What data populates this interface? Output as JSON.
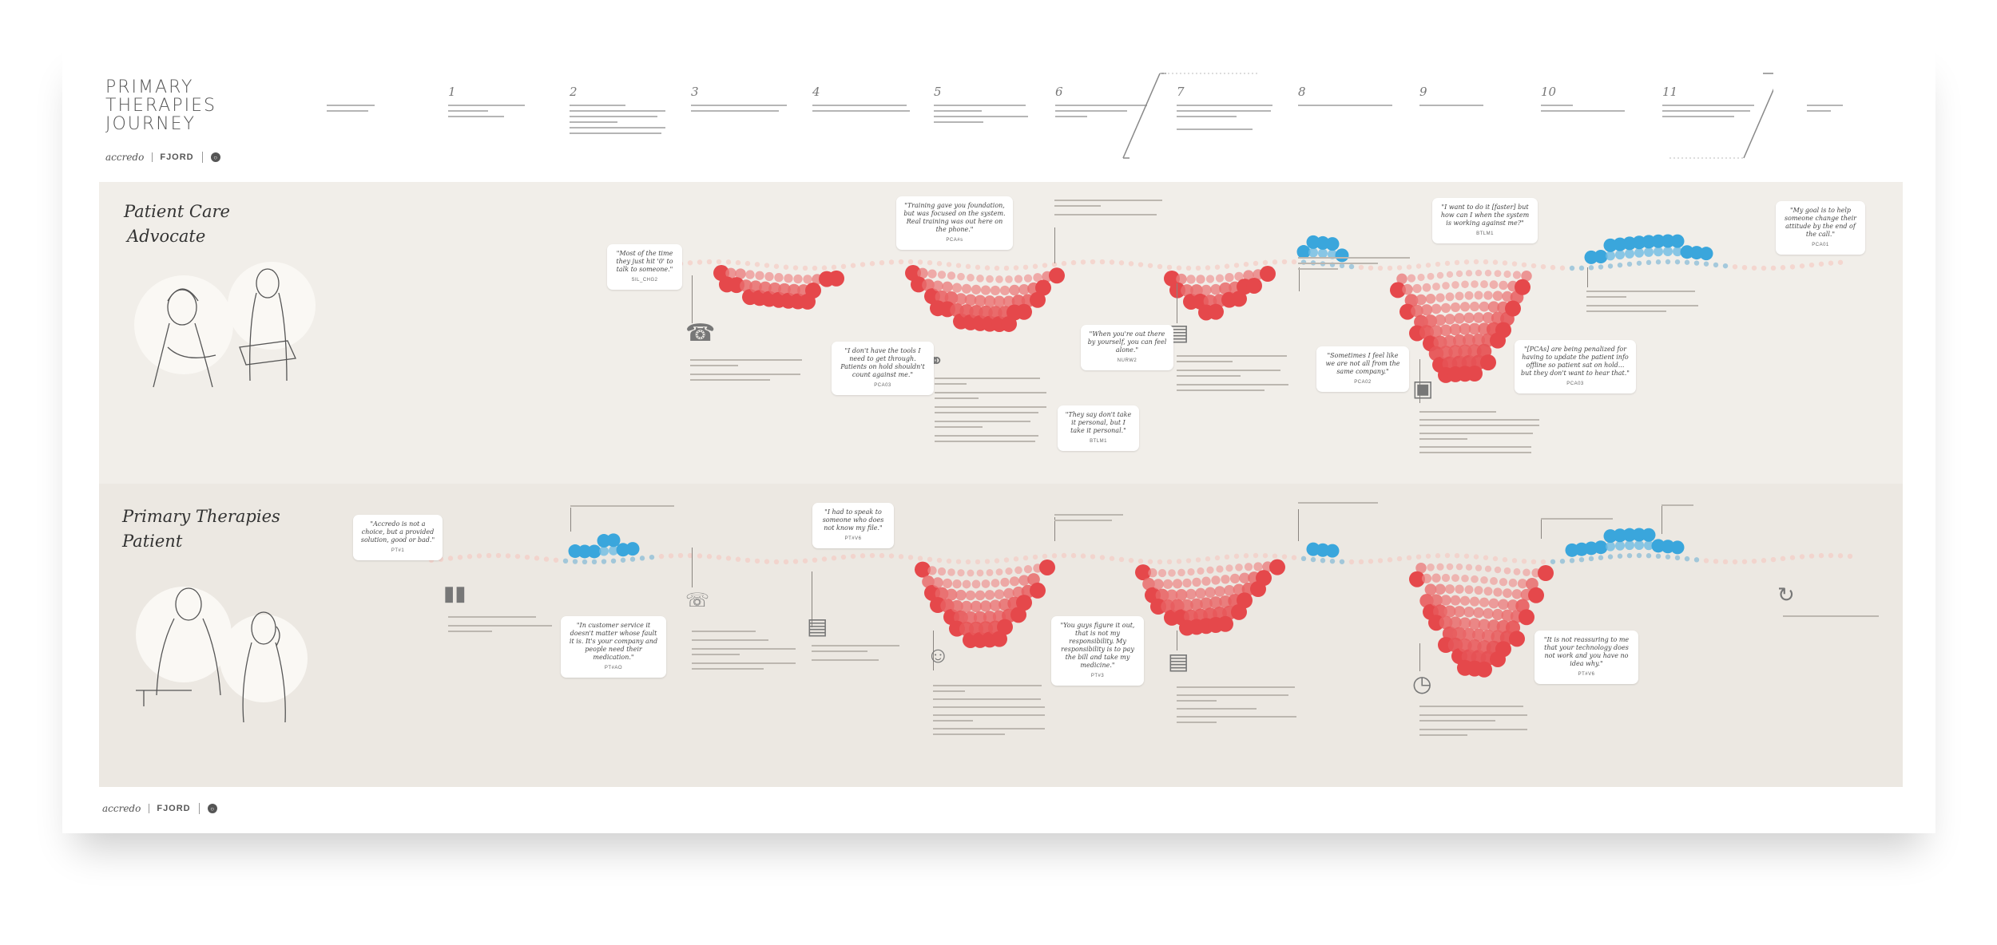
{
  "header": {
    "title_lines": [
      "PRIMARY",
      "THERAPIES",
      "JOURNEY"
    ],
    "logos": {
      "accredo": "accredo",
      "fjord": "FJORD"
    },
    "steps": [
      {
        "num": ""
      },
      {
        "num": "1"
      },
      {
        "num": "2"
      },
      {
        "num": "3"
      },
      {
        "num": "4"
      },
      {
        "num": "5"
      },
      {
        "num": "6"
      },
      {
        "num": "7"
      },
      {
        "num": "8"
      },
      {
        "num": "9"
      },
      {
        "num": "10"
      },
      {
        "num": "11"
      },
      {
        "num": ""
      }
    ]
  },
  "lanes": {
    "pca": {
      "title_lines": [
        "Patient Care",
        "Advocate"
      ]
    },
    "patient": {
      "title_lines": [
        "Primary Therapies",
        "Patient"
      ]
    }
  },
  "quotes": {
    "q1": {
      "text": "\"Most of the time they just hit '0' to talk to someone.\""
    },
    "q2": {
      "text": "\"Training gave you foundation, but was focused on the system. Real training was out here on the phone.\""
    },
    "q3": {
      "text": "\"I don't have the tools I need to get through. Patients on hold shouldn't count against me.\""
    },
    "q4": {
      "text": "\"When you're out there by yourself, you can feel alone.\""
    },
    "q5": {
      "text": "\"They say don't take it personal, but I take it personal.\""
    },
    "q6": {
      "text": "\"I want to do it [faster] but how can I when the system is working against me?\""
    },
    "q7": {
      "text": "\"Sometimes I feel like we are not all from the same company.\""
    },
    "q8": {
      "text": "\"[PCAs] are being penalized for having to update the patient info offline so patient sat on hold... but they don't want to hear that.\""
    },
    "q9": {
      "text": "\"My goal is to help someone change their attitude by the end of the call.\""
    },
    "q10": {
      "text": "\"Accredo is not a choice, but a provided solution, good or bad.\""
    },
    "q11": {
      "text": "\"I had to speak to someone who does not know my file.\""
    },
    "q12": {
      "text": "\"In customer service it doesn't matter whose fault it is. It's your company and people need their medication.\""
    },
    "q13": {
      "text": "\"You guys figure it out, that is not my responsibility. My responsibility is to pay the bill and take my medicine.\""
    },
    "q14": {
      "text": "\"It is not reassuring to me that your technology does not work and you have no idea why.\""
    }
  },
  "colors": {
    "warm": "#e5484b",
    "cool": "#3aa6dc"
  }
}
